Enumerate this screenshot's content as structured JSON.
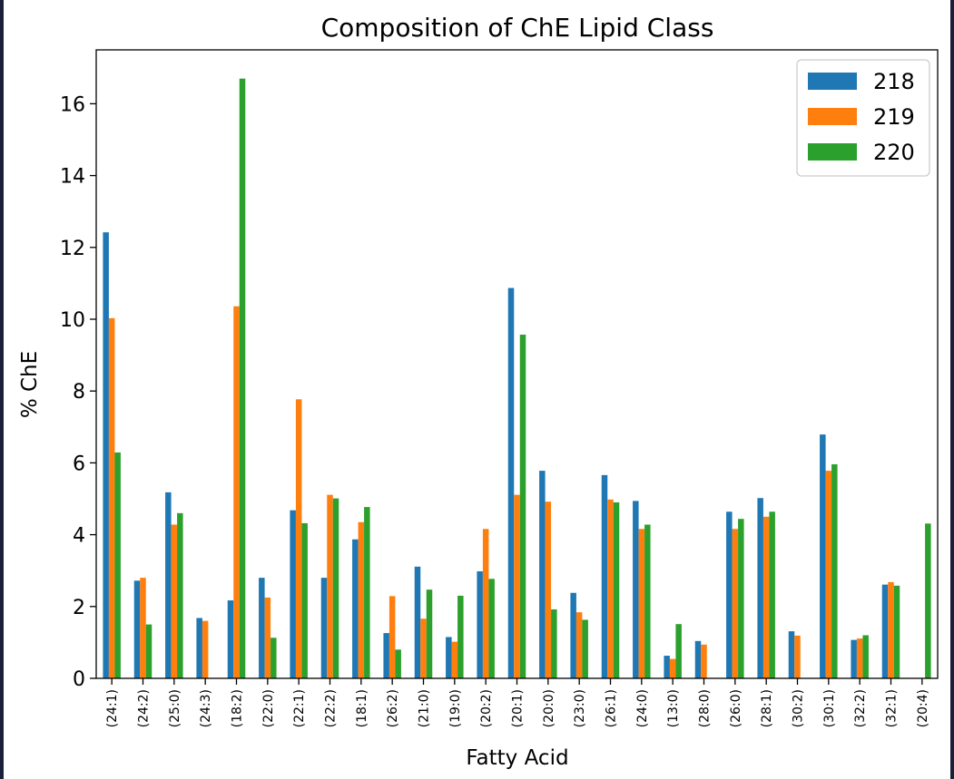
{
  "chart_data": {
    "type": "bar",
    "title": "Composition of ChE Lipid Class",
    "xlabel": "Fatty Acid",
    "ylabel": "% ChE",
    "ylim": [
      0,
      17.5
    ],
    "yticks": [
      0,
      2,
      4,
      6,
      8,
      10,
      12,
      14,
      16
    ],
    "legend_position": "top-right",
    "grid": false,
    "categories": [
      "(24:1)",
      "(24:2)",
      "(25:0)",
      "(24:3)",
      "(18:2)",
      "(22:0)",
      "(22:1)",
      "(22:2)",
      "(18:1)",
      "(26:2)",
      "(21:0)",
      "(19:0)",
      "(20:2)",
      "(20:1)",
      "(20:0)",
      "(23:0)",
      "(26:1)",
      "(24:0)",
      "(13:0)",
      "(28:0)",
      "(26:0)",
      "(28:1)",
      "(30:2)",
      "(30:1)",
      "(32:2)",
      "(32:1)",
      "(20:4)"
    ],
    "series": [
      {
        "name": "218",
        "color": "#1f77b4",
        "values": [
          12.42,
          2.72,
          5.18,
          1.68,
          2.17,
          2.8,
          4.68,
          2.8,
          3.87,
          1.26,
          3.11,
          1.15,
          2.98,
          10.87,
          5.78,
          2.38,
          5.66,
          4.94,
          0.63,
          1.04,
          4.64,
          5.02,
          1.31,
          6.79,
          1.07,
          2.61,
          0
        ]
      },
      {
        "name": "219",
        "color": "#ff7f0e",
        "values": [
          10.03,
          2.8,
          4.28,
          1.6,
          10.36,
          2.25,
          7.77,
          5.11,
          4.35,
          2.29,
          1.66,
          1.02,
          4.16,
          5.11,
          4.92,
          1.84,
          4.98,
          4.16,
          0.54,
          0.94,
          4.16,
          4.5,
          1.19,
          5.78,
          1.11,
          2.68,
          0
        ]
      },
      {
        "name": "220",
        "color": "#2ca02c",
        "values": [
          6.29,
          1.5,
          4.6,
          0,
          16.7,
          1.13,
          4.32,
          5.01,
          4.77,
          0.8,
          2.47,
          2.3,
          2.77,
          9.57,
          1.92,
          1.63,
          4.9,
          4.28,
          1.51,
          0,
          4.44,
          4.64,
          0,
          5.96,
          1.2,
          2.58,
          4.31
        ]
      }
    ]
  }
}
